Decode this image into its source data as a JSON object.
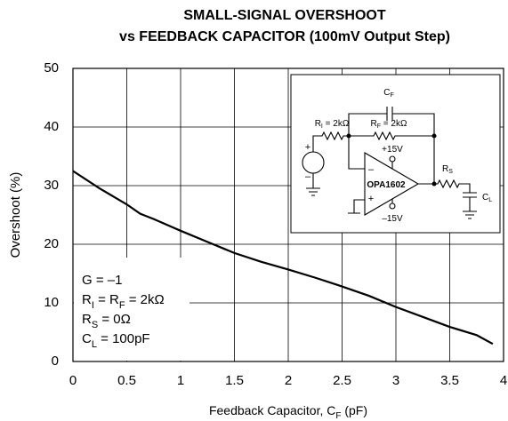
{
  "chart_data": {
    "type": "line",
    "title": "SMALL-SIGNAL OVERSHOOT",
    "subtitle": "vs FEEDBACK CAPACITOR (100mV Output Step)",
    "y_label": "Overshoot (%)",
    "x_label": [
      {
        "text": "Feedback Capacitor, C"
      },
      {
        "text": "F",
        "sub": true
      },
      {
        "text": " (pF)"
      }
    ],
    "x": [
      0,
      0.25,
      0.5,
      0.625,
      0.75,
      1,
      1.25,
      1.5,
      1.75,
      2,
      2.25,
      2.5,
      2.75,
      3,
      3.25,
      3.5,
      3.75,
      3.9
    ],
    "values": [
      32.5,
      29.5,
      26.8,
      25.2,
      24.3,
      22.3,
      20.4,
      18.5,
      17,
      15.7,
      14.3,
      12.8,
      11.2,
      9.3,
      7.6,
      5.9,
      4.5,
      3
    ],
    "color": "#000000",
    "xlim": [
      0,
      4
    ],
    "xticks": [
      0,
      0.5,
      1,
      1.5,
      2,
      2.5,
      3,
      3.5,
      4
    ],
    "ylim": [
      0,
      50
    ],
    "yticks": [
      0,
      10,
      20,
      30,
      40,
      50
    ],
    "grid": true,
    "annotations": [
      [
        {
          "text": "G = –1"
        }
      ],
      [
        {
          "text": "R"
        },
        {
          "text": "I",
          "sub": true
        },
        {
          "text": " = R"
        },
        {
          "text": "F",
          "sub": true
        },
        {
          "text": " = 2kΩ"
        }
      ],
      [
        {
          "text": "R"
        },
        {
          "text": "S",
          "sub": true
        },
        {
          "text": " = 0Ω"
        }
      ],
      [
        {
          "text": "C"
        },
        {
          "text": "L",
          "sub": true
        },
        {
          "text": " = 100pF"
        }
      ]
    ],
    "inset": [
      [
        {
          "text": "C"
        },
        {
          "text": "F",
          "sub": true
        }
      ],
      [
        {
          "text": "R"
        },
        {
          "text": "I",
          "sub": true
        },
        {
          "text": " = 2kΩ"
        }
      ],
      [
        {
          "text": "R"
        },
        {
          "text": "F",
          "sub": true
        },
        {
          "text": " = 2kΩ"
        }
      ],
      [
        {
          "text": "+15V"
        }
      ],
      [
        {
          "text": "–15V"
        }
      ],
      [
        {
          "text": "OPA1602"
        }
      ],
      [
        {
          "text": "R"
        },
        {
          "text": "S",
          "sub": true
        }
      ],
      [
        {
          "text": "C"
        },
        {
          "text": "L",
          "sub": true
        }
      ],
      [
        {
          "text": "+"
        }
      ],
      [
        {
          "text": "–"
        }
      ],
      [
        {
          "text": "–"
        }
      ],
      [
        {
          "text": "+"
        }
      ]
    ]
  }
}
